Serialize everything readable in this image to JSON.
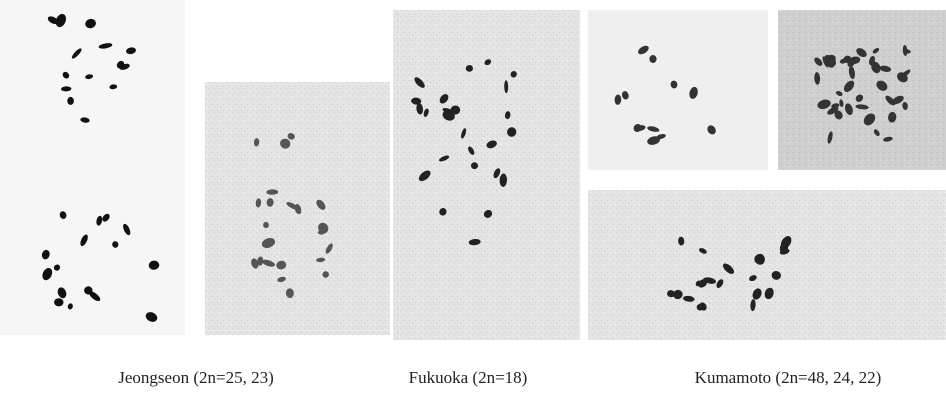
{
  "captions": [
    "Jeongseon (2n=25, 23)",
    "Fukuoka (2n=18)",
    "Kumamoto (2n=48, 24, 22)"
  ]
}
